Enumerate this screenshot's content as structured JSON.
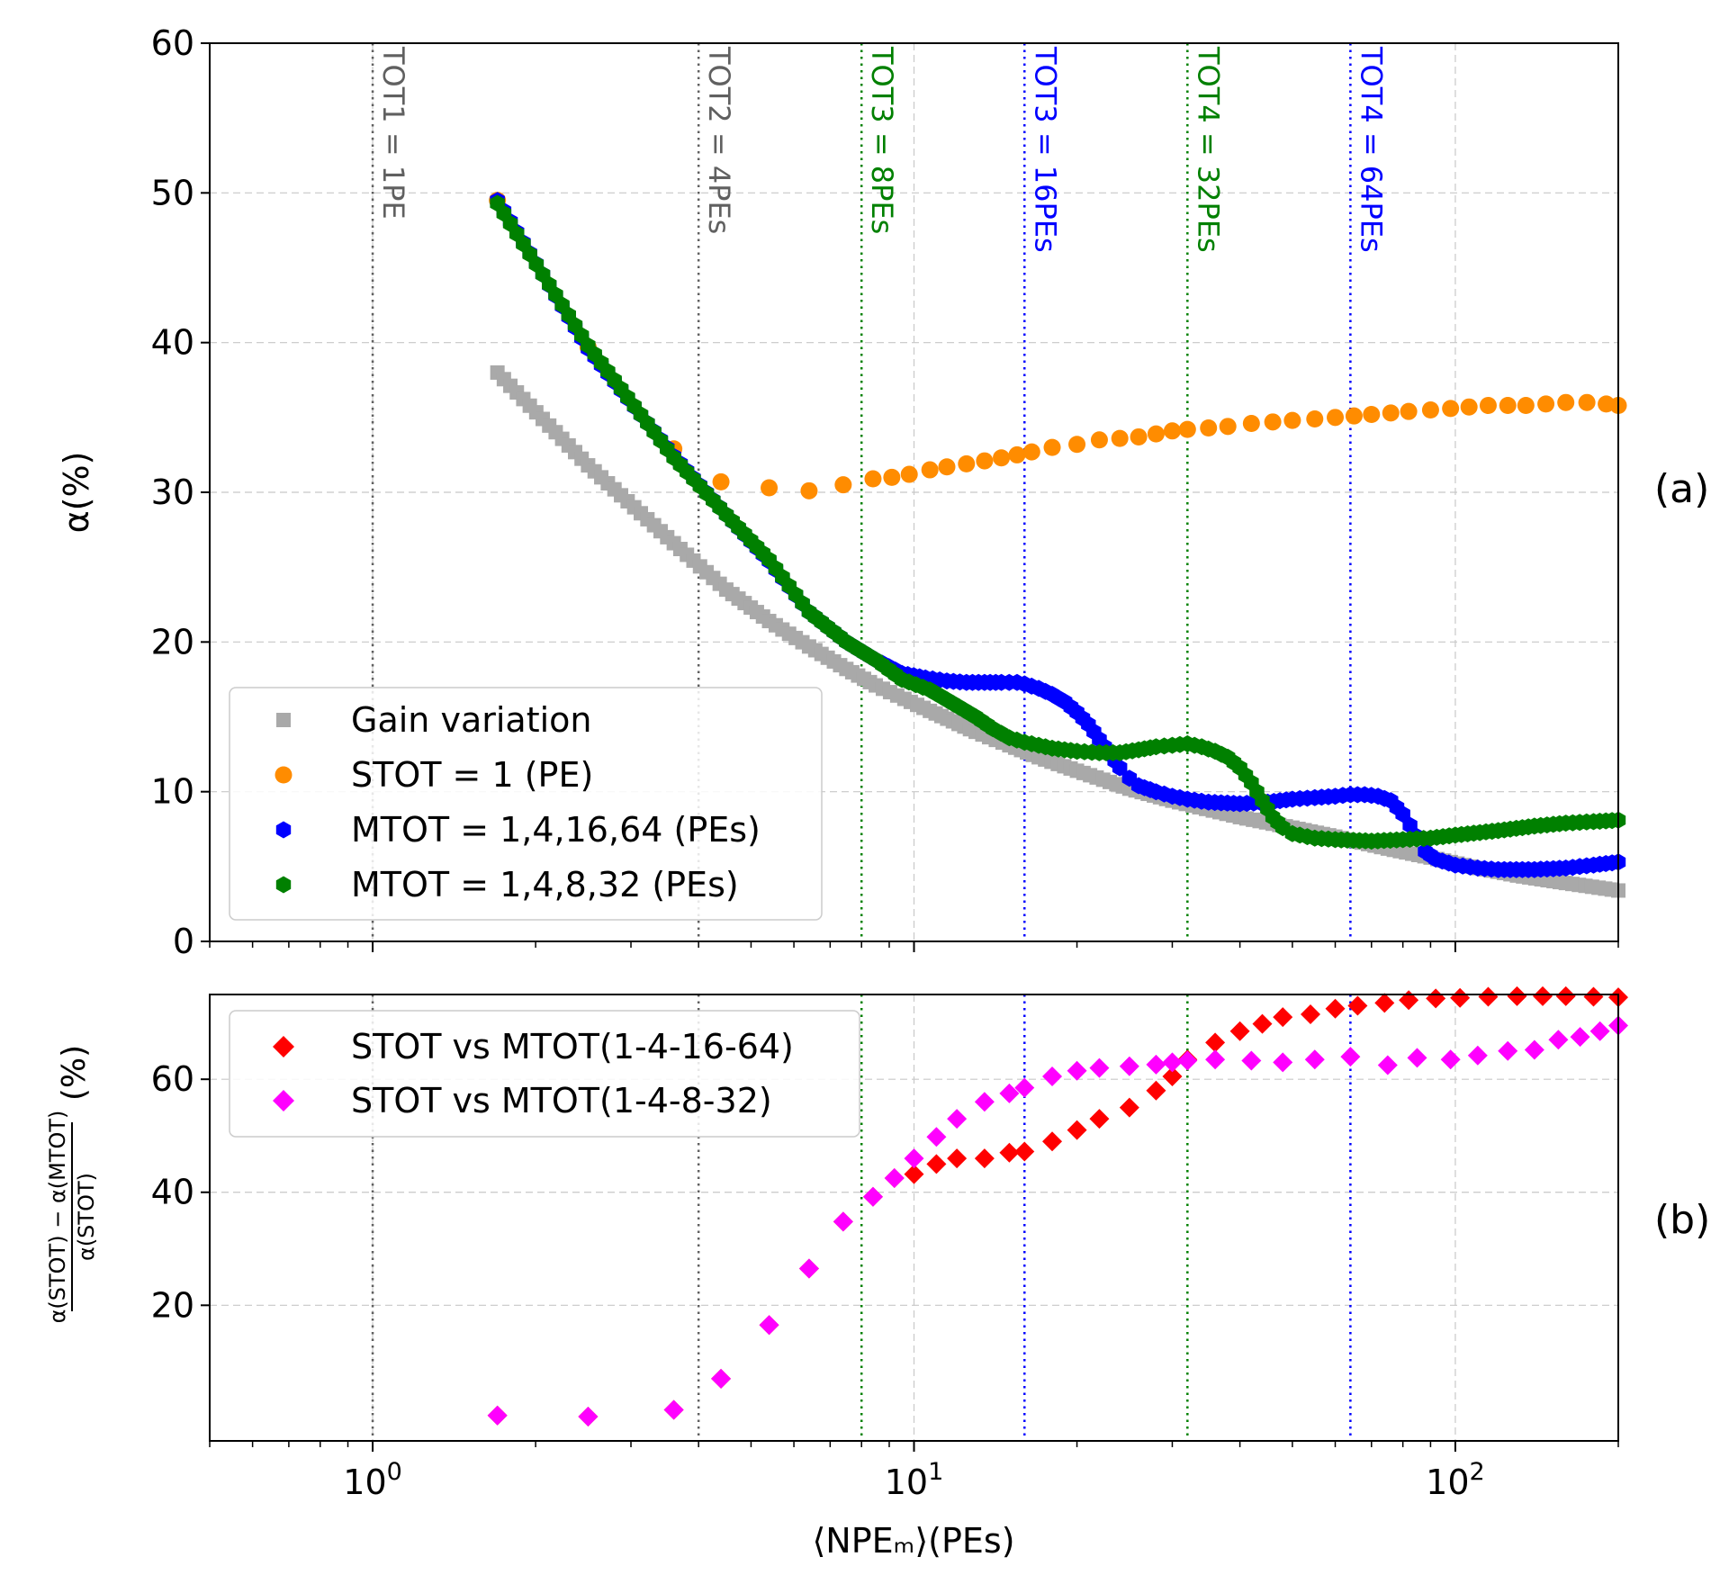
{
  "chart_data": [
    {
      "panel_id": "a",
      "type": "scatter",
      "panel_label": "(a)",
      "ylabel": "α(%)",
      "xscale": "log",
      "xlim": [
        0.5,
        200
      ],
      "ylim": [
        0,
        60
      ],
      "yticks": [
        0,
        10,
        20,
        30,
        40,
        50,
        60
      ],
      "grid": true,
      "legend_position": "lower-left",
      "vlines": [
        {
          "x": 1,
          "label": "TOT1 = 1PE",
          "color": "#606060"
        },
        {
          "x": 4,
          "label": "TOT2 = 4PEs",
          "color": "#606060"
        },
        {
          "x": 8,
          "label": "TOT3 = 8PEs",
          "color": "#008000"
        },
        {
          "x": 16,
          "label": "TOT3 = 16PEs",
          "color": "#0000ff"
        },
        {
          "x": 32,
          "label": "TOT4 = 32PEs",
          "color": "#008000"
        },
        {
          "x": 64,
          "label": "TOT4 = 64PEs",
          "color": "#0000ff"
        }
      ],
      "series": [
        {
          "name": "Gain variation",
          "marker": "square",
          "color": "#a9a9a9",
          "dense": true,
          "points": [
            [
              1.7,
              38.0
            ],
            [
              2.5,
              31.8
            ],
            [
              3.6,
              26.6
            ],
            [
              4.5,
              23.5
            ],
            [
              5.4,
              21.4
            ],
            [
              6.4,
              19.7
            ],
            [
              7.5,
              18.2
            ],
            [
              8.5,
              17.1
            ],
            [
              9.6,
              16.2
            ],
            [
              10.7,
              15.4
            ],
            [
              11.8,
              14.7
            ],
            [
              13,
              14.0
            ],
            [
              15,
              13.1
            ],
            [
              17,
              12.3
            ],
            [
              20,
              11.4
            ],
            [
              25,
              10.2
            ],
            [
              30,
              9.4
            ],
            [
              40,
              8.3
            ],
            [
              50,
              7.6
            ],
            [
              60,
              7.0
            ],
            [
              75,
              6.2
            ],
            [
              90,
              5.6
            ],
            [
              110,
              4.9
            ],
            [
              130,
              4.4
            ],
            [
              160,
              3.9
            ],
            [
              200,
              3.4
            ]
          ]
        },
        {
          "name": "STOT = 1 (PE)",
          "marker": "circle",
          "color": "#ff8c00",
          "dense": false,
          "points": [
            [
              1.7,
              49.5
            ],
            [
              2.5,
              39.7
            ],
            [
              3.6,
              32.9
            ],
            [
              4.4,
              30.7
            ],
            [
              5.4,
              30.3
            ],
            [
              6.4,
              30.1
            ],
            [
              7.4,
              30.5
            ],
            [
              8.4,
              30.9
            ],
            [
              9.1,
              31.0
            ],
            [
              9.8,
              31.2
            ],
            [
              10.7,
              31.5
            ],
            [
              11.5,
              31.7
            ],
            [
              12.5,
              31.9
            ],
            [
              13.5,
              32.1
            ],
            [
              14.5,
              32.3
            ],
            [
              15.5,
              32.5
            ],
            [
              16.5,
              32.7
            ],
            [
              18,
              33.0
            ],
            [
              20,
              33.2
            ],
            [
              22,
              33.5
            ],
            [
              24,
              33.6
            ],
            [
              26,
              33.7
            ],
            [
              28,
              33.9
            ],
            [
              30,
              34.1
            ],
            [
              32,
              34.2
            ],
            [
              35,
              34.3
            ],
            [
              38,
              34.4
            ],
            [
              42,
              34.6
            ],
            [
              46,
              34.7
            ],
            [
              50,
              34.8
            ],
            [
              55,
              34.9
            ],
            [
              60,
              35.0
            ],
            [
              65,
              35.1
            ],
            [
              70,
              35.2
            ],
            [
              76,
              35.3
            ],
            [
              82,
              35.4
            ],
            [
              90,
              35.5
            ],
            [
              98,
              35.6
            ],
            [
              106,
              35.7
            ],
            [
              115,
              35.8
            ],
            [
              125,
              35.8
            ],
            [
              135,
              35.8
            ],
            [
              147,
              35.9
            ],
            [
              160,
              36.0
            ],
            [
              175,
              36.0
            ],
            [
              190,
              35.9
            ],
            [
              200,
              35.8
            ]
          ]
        },
        {
          "name": "MTOT = 1,4,16,64 (PEs)",
          "marker": "hexagon",
          "color": "#0000ff",
          "dense": true,
          "points": [
            [
              1.7,
              49.5
            ],
            [
              2.5,
              39.6
            ],
            [
              3.6,
              32.4
            ],
            [
              4.5,
              28.5
            ],
            [
              5.4,
              25.4
            ],
            [
              6.4,
              22.0
            ],
            [
              7.5,
              20.0
            ],
            [
              8.5,
              18.8
            ],
            [
              9.5,
              17.9
            ],
            [
              10.5,
              17.6
            ],
            [
              11.5,
              17.4
            ],
            [
              12.5,
              17.3
            ],
            [
              13.5,
              17.3
            ],
            [
              14.5,
              17.3
            ],
            [
              15.5,
              17.3
            ],
            [
              16,
              17.2
            ],
            [
              17,
              16.9
            ],
            [
              18,
              16.5
            ],
            [
              19,
              16.0
            ],
            [
              20,
              15.3
            ],
            [
              21,
              14.5
            ],
            [
              22,
              13.5
            ],
            [
              23,
              12.5
            ],
            [
              24,
              11.6
            ],
            [
              25,
              10.9
            ],
            [
              26,
              10.4
            ],
            [
              28,
              10.0
            ],
            [
              30,
              9.7
            ],
            [
              32,
              9.5
            ],
            [
              35,
              9.3
            ],
            [
              40,
              9.2
            ],
            [
              45,
              9.3
            ],
            [
              50,
              9.5
            ],
            [
              55,
              9.6
            ],
            [
              60,
              9.7
            ],
            [
              64,
              9.8
            ],
            [
              68,
              9.8
            ],
            [
              72,
              9.7
            ],
            [
              76,
              9.4
            ],
            [
              80,
              8.5
            ],
            [
              85,
              7.0
            ],
            [
              88,
              6.0
            ],
            [
              92,
              5.5
            ],
            [
              100,
              5.1
            ],
            [
              110,
              4.9
            ],
            [
              120,
              4.8
            ],
            [
              140,
              4.8
            ],
            [
              160,
              4.9
            ],
            [
              180,
              5.1
            ],
            [
              200,
              5.3
            ]
          ]
        },
        {
          "name": "MTOT = 1,4,8,32 (PEs)",
          "marker": "hexagon",
          "color": "#008000",
          "dense": true,
          "points": [
            [
              1.7,
              49.3
            ],
            [
              2.5,
              39.8
            ],
            [
              3.6,
              32.3
            ],
            [
              4.5,
              28.5
            ],
            [
              5.4,
              25.5
            ],
            [
              6.4,
              22.0
            ],
            [
              7.5,
              20.0
            ],
            [
              8.5,
              18.8
            ],
            [
              9.5,
              17.5
            ],
            [
              10.7,
              16.8
            ],
            [
              11.8,
              15.9
            ],
            [
              13,
              15.0
            ],
            [
              14,
              14.2
            ],
            [
              15,
              13.6
            ],
            [
              16,
              13.3
            ],
            [
              17,
              13.1
            ],
            [
              18,
              12.9
            ],
            [
              20,
              12.7
            ],
            [
              22,
              12.6
            ],
            [
              24,
              12.6
            ],
            [
              26,
              12.8
            ],
            [
              28,
              13.0
            ],
            [
              30,
              13.1
            ],
            [
              32,
              13.2
            ],
            [
              34,
              13.0
            ],
            [
              36,
              12.7
            ],
            [
              38,
              12.3
            ],
            [
              40,
              11.6
            ],
            [
              42,
              10.6
            ],
            [
              44,
              9.4
            ],
            [
              46,
              8.3
            ],
            [
              48,
              7.6
            ],
            [
              50,
              7.2
            ],
            [
              55,
              6.9
            ],
            [
              60,
              6.8
            ],
            [
              70,
              6.7
            ],
            [
              80,
              6.8
            ],
            [
              90,
              6.9
            ],
            [
              100,
              7.1
            ],
            [
              120,
              7.4
            ],
            [
              140,
              7.7
            ],
            [
              160,
              7.9
            ],
            [
              180,
              8.0
            ],
            [
              200,
              8.1
            ]
          ]
        }
      ]
    },
    {
      "panel_id": "b",
      "type": "scatter",
      "panel_label": "(b)",
      "ylabel": "(%)",
      "ylabel_numerator": "α(STOT) − α(MTOT)",
      "ylabel_denominator": "α(STOT)",
      "xlabel": "⟨NPEₘ⟩(PEs)",
      "xscale": "log",
      "xlim": [
        0.5,
        200
      ],
      "ylim": [
        -4,
        75
      ],
      "yticks": [
        20,
        40,
        60
      ],
      "xticks": [
        1,
        10,
        100
      ],
      "xticklabels_base": [
        "10",
        "10",
        "10"
      ],
      "xticklabels_exp": [
        "0",
        "1",
        "2"
      ],
      "grid": true,
      "legend_position": "upper-left",
      "vlines": [
        {
          "x": 1,
          "color": "#606060"
        },
        {
          "x": 4,
          "color": "#606060"
        },
        {
          "x": 8,
          "color": "#008000"
        },
        {
          "x": 16,
          "color": "#0000ff"
        },
        {
          "x": 32,
          "color": "#008000"
        },
        {
          "x": 64,
          "color": "#0000ff"
        }
      ],
      "series": [
        {
          "name": "STOT vs MTOT(1-4-16-64)",
          "marker": "diamond",
          "color": "#ff0000",
          "points": [
            [
              1.7,
              0.5
            ],
            [
              2.5,
              0.3
            ],
            [
              3.6,
              1.5
            ],
            [
              4.4,
              7.0
            ],
            [
              5.4,
              16.5
            ],
            [
              6.4,
              26.5
            ],
            [
              7.4,
              34.8
            ],
            [
              8.4,
              39.2
            ],
            [
              9.2,
              42.5
            ],
            [
              10,
              43.2
            ],
            [
              11,
              45.0
            ],
            [
              12,
              46.0
            ],
            [
              13.5,
              46.0
            ],
            [
              15,
              47.0
            ],
            [
              16,
              47.2
            ],
            [
              18,
              49.0
            ],
            [
              20,
              51.0
            ],
            [
              22,
              53.0
            ],
            [
              25,
              55.0
            ],
            [
              28,
              58.0
            ],
            [
              30,
              60.5
            ],
            [
              32,
              63.5
            ],
            [
              36,
              66.5
            ],
            [
              40,
              68.5
            ],
            [
              44,
              69.8
            ],
            [
              48,
              71.0
            ],
            [
              54,
              71.5
            ],
            [
              60,
              72.5
            ],
            [
              66,
              73.0
            ],
            [
              74,
              73.5
            ],
            [
              82,
              74.0
            ],
            [
              92,
              74.3
            ],
            [
              102,
              74.4
            ],
            [
              115,
              74.6
            ],
            [
              130,
              74.7
            ],
            [
              145,
              74.7
            ],
            [
              160,
              74.7
            ],
            [
              180,
              74.6
            ],
            [
              200,
              74.5
            ]
          ]
        },
        {
          "name": "STOT vs MTOT(1-4-8-32)",
          "marker": "diamond",
          "color": "#ff00ff",
          "points": [
            [
              1.7,
              0.5
            ],
            [
              2.5,
              0.3
            ],
            [
              3.6,
              1.5
            ],
            [
              4.4,
              7.0
            ],
            [
              5.4,
              16.5
            ],
            [
              6.4,
              26.5
            ],
            [
              7.4,
              34.8
            ],
            [
              8.4,
              39.2
            ],
            [
              9.2,
              42.5
            ],
            [
              10,
              46.0
            ],
            [
              11,
              49.8
            ],
            [
              12,
              53.0
            ],
            [
              13.5,
              56.0
            ],
            [
              15,
              57.5
            ],
            [
              16,
              58.5
            ],
            [
              18,
              60.5
            ],
            [
              20,
              61.5
            ],
            [
              22,
              62.0
            ],
            [
              25,
              62.3
            ],
            [
              28,
              62.6
            ],
            [
              30,
              63.0
            ],
            [
              32,
              63.3
            ],
            [
              36,
              63.5
            ],
            [
              42,
              63.3
            ],
            [
              48,
              63.0
            ],
            [
              55,
              63.5
            ],
            [
              64,
              64.0
            ],
            [
              75,
              62.5
            ],
            [
              85,
              63.8
            ],
            [
              98,
              63.5
            ],
            [
              110,
              64.2
            ],
            [
              125,
              65.0
            ],
            [
              140,
              65.2
            ],
            [
              155,
              67.0
            ],
            [
              170,
              67.5
            ],
            [
              185,
              68.5
            ],
            [
              200,
              69.5
            ]
          ]
        }
      ]
    }
  ]
}
